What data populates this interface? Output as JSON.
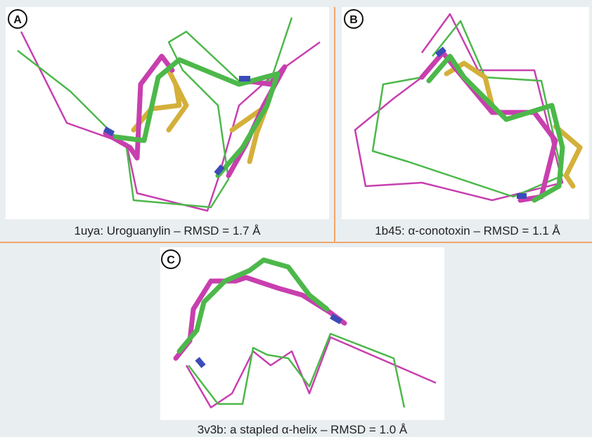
{
  "panels": [
    {
      "label": "A",
      "caption": "1uya: Uroguanylin – RMSD = 1.7 Å"
    },
    {
      "label": "B",
      "caption": "1b45: α-conotoxin – RMSD = 1.1 Å"
    },
    {
      "label": "C",
      "caption": "3v3b: a stapled α-helix – RMSD = 1.0 Å"
    }
  ]
}
